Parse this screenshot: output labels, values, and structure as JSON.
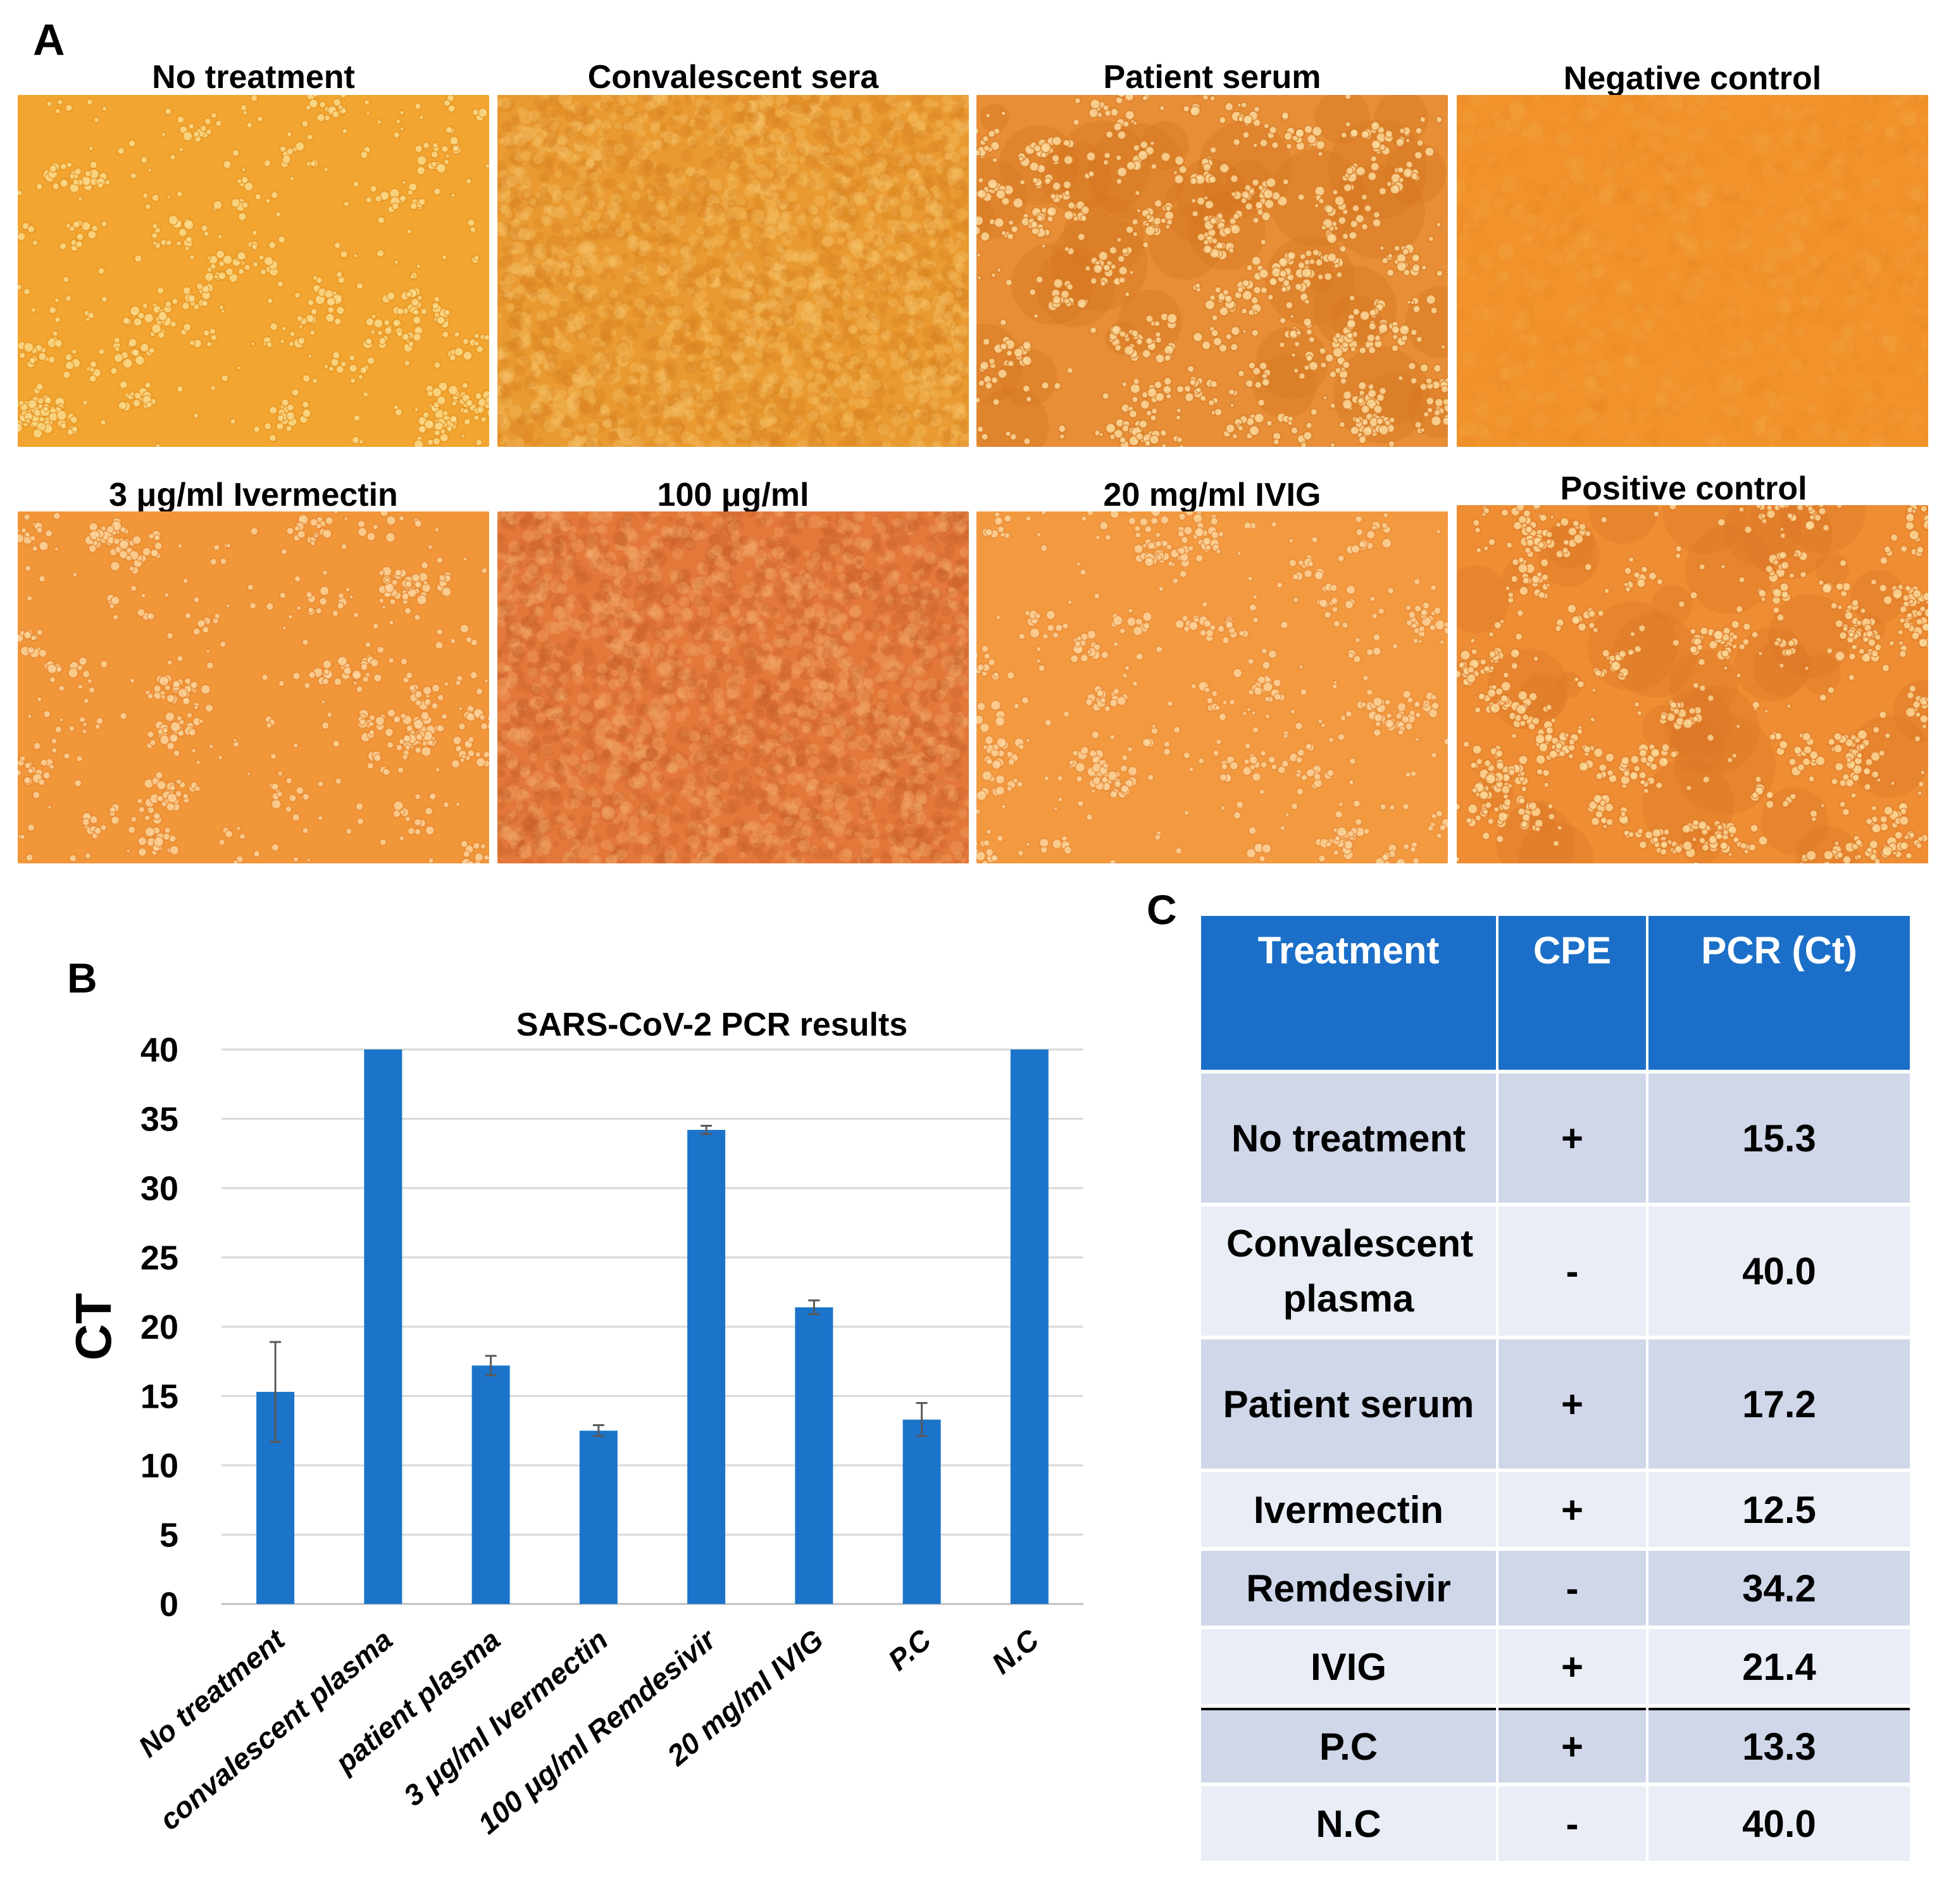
{
  "panel_a": {
    "letter": "A",
    "images": [
      {
        "title": "No treatment",
        "style": "sparse",
        "colors": [
          "#f2a531",
          "#e48e18",
          "#fad98a"
        ]
      },
      {
        "title": "Convalescent sera",
        "style": "dense",
        "colors": [
          "#e99a30",
          "#d98522",
          "#f5c26a"
        ]
      },
      {
        "title": "Patient serum",
        "style": "patch",
        "colors": [
          "#e78e36",
          "#d4761f",
          "#fbd89a"
        ]
      },
      {
        "title": "Negative control",
        "style": "smooth",
        "colors": [
          "#f1922a",
          "#e58420",
          "#f8ba62"
        ]
      },
      {
        "title": "3 μg/ml Ivermectin",
        "style": "sparse",
        "colors": [
          "#f2963a",
          "#e4822a",
          "#fbd49a"
        ]
      },
      {
        "title": "100 μg/ml",
        "style": "dense",
        "colors": [
          "#e3783a",
          "#c9602a",
          "#f2a86a"
        ]
      },
      {
        "title": "20 mg/ml IVIG",
        "style": "sparse",
        "colors": [
          "#f39a40",
          "#e58633",
          "#fbd39b"
        ]
      },
      {
        "title": "Positive control",
        "style": "patch",
        "colors": [
          "#ee8d33",
          "#db7525",
          "#fbd797"
        ]
      }
    ]
  },
  "panel_b": {
    "letter": "B"
  },
  "panel_c": {
    "letter": "C"
  },
  "chart_data": {
    "type": "bar",
    "title": "SARS-CoV-2 PCR results",
    "xlabel": "",
    "ylabel": "CT",
    "ylim": [
      0,
      40
    ],
    "yticks": [
      0,
      5,
      10,
      15,
      20,
      25,
      30,
      35,
      40
    ],
    "grid": "horizontal",
    "categories": [
      "No treatment",
      "convalescent plasma",
      "patient plasma",
      "3 μg/ml Ivermectin",
      "100 μg/ml Remdesivir",
      "20 mg/ml IVIG",
      "P.C",
      "N.C"
    ],
    "values": [
      15.3,
      40.0,
      17.2,
      12.5,
      34.2,
      21.4,
      13.3,
      40.0
    ],
    "errors": [
      3.6,
      0,
      0.7,
      0.4,
      0.3,
      0.5,
      1.2,
      0
    ],
    "bar_color": "#1b74c9"
  },
  "table": {
    "headers": [
      "Treatment",
      "CPE",
      "PCR (Ct)"
    ],
    "rows": [
      {
        "treatment": "No treatment",
        "cpe": "+",
        "pcr": "15.3"
      },
      {
        "treatment": "Convalescent plasma",
        "cpe": "-",
        "pcr": "40.0"
      },
      {
        "treatment": "Patient serum",
        "cpe": "+",
        "pcr": "17.2"
      },
      {
        "treatment": "Ivermectin",
        "cpe": "+",
        "pcr": "12.5"
      },
      {
        "treatment": "Remdesivir",
        "cpe": "-",
        "pcr": "34.2"
      },
      {
        "treatment": "IVIG",
        "cpe": "+",
        "pcr": "21.4"
      },
      {
        "treatment": "P.C",
        "cpe": "+",
        "pcr": "13.3"
      },
      {
        "treatment": "N.C",
        "cpe": "-",
        "pcr": "40.0"
      }
    ]
  }
}
